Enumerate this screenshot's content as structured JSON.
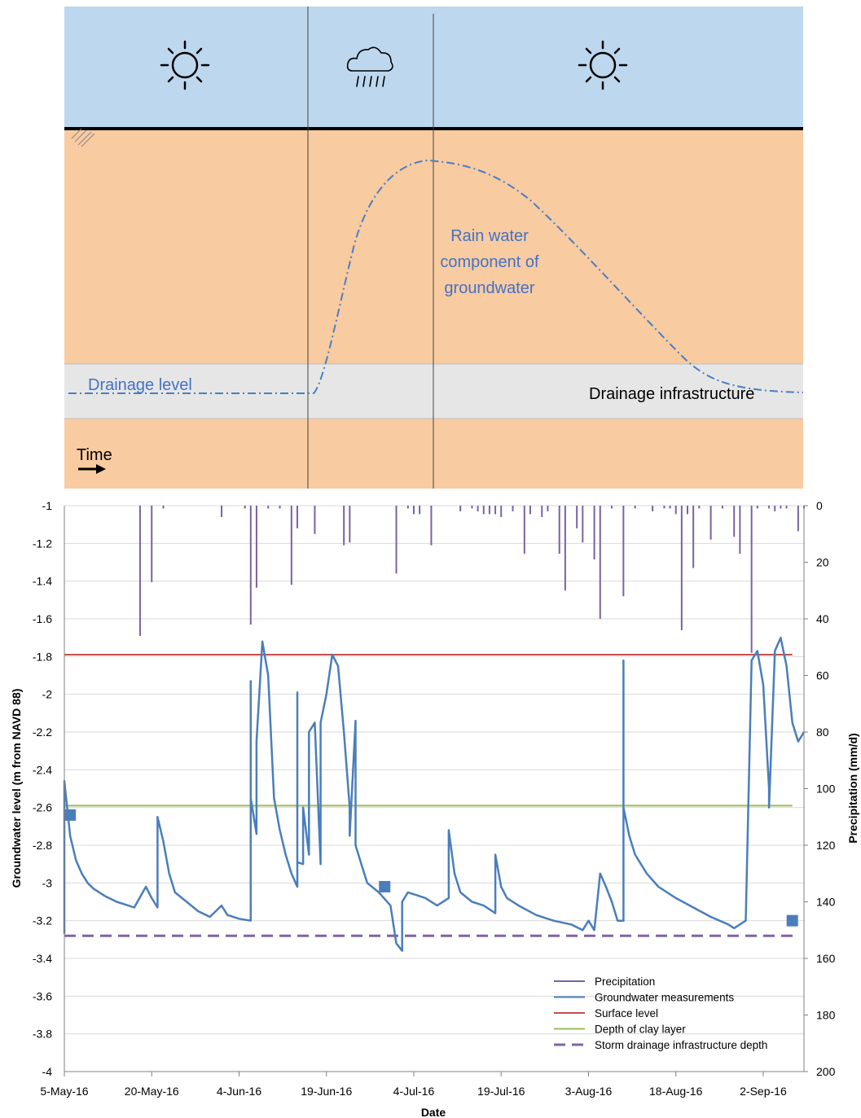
{
  "schematic": {
    "annotation_rain": [
      "Rain water",
      "component of",
      "groundwater"
    ],
    "drainage_level_label": "Drainage level",
    "drainage_infrastructure_label": "Drainage infrastructure",
    "time_label": "Time",
    "icons": [
      "sun-icon",
      "rain-cloud-icon",
      "sun-icon"
    ],
    "colors": {
      "sky": "#bdd7ee",
      "soil": "#f8cba1",
      "drain_band": "#e6e6e6",
      "dashline": "#4a7ec3"
    }
  },
  "chart_data": {
    "type": "line",
    "xlabel": "Date",
    "ylabel": "Groundwater level (m from NAVD 88)",
    "y2label": "Precipitation (mm/d)",
    "x_ticks": [
      "5-May-16",
      "20-May-16",
      "4-Jun-16",
      "19-Jun-16",
      "4-Jul-16",
      "19-Jul-16",
      "3-Aug-16",
      "18-Aug-16",
      "2-Sep-16"
    ],
    "xlim": [
      "2016-05-05",
      "2016-09-09"
    ],
    "ylim": [
      -4,
      -1
    ],
    "y_ticks": [
      -1,
      -1.2,
      -1.4,
      -1.6,
      -1.8,
      -2,
      -2.2,
      -2.4,
      -2.6,
      -2.8,
      -3,
      -3.2,
      -3.4,
      -3.6,
      -3.8,
      -4
    ],
    "y2lim": [
      0,
      200
    ],
    "y2_reversed": true,
    "y2_ticks": [
      0,
      20,
      40,
      60,
      80,
      100,
      120,
      140,
      160,
      180,
      200
    ],
    "grid": true,
    "legend_position": "bottom-right",
    "series": [
      {
        "name": "Precipitation",
        "type": "bar",
        "color": "#7a62a3",
        "points": [
          [
            "2016-05-18",
            46
          ],
          [
            "2016-05-20",
            27
          ],
          [
            "2016-05-22",
            1
          ],
          [
            "2016-06-01",
            4
          ],
          [
            "2016-06-05",
            1
          ],
          [
            "2016-06-06",
            42
          ],
          [
            "2016-06-07",
            29
          ],
          [
            "2016-06-09",
            1
          ],
          [
            "2016-06-11",
            1
          ],
          [
            "2016-06-13",
            28
          ],
          [
            "2016-06-14",
            8
          ],
          [
            "2016-06-17",
            10
          ],
          [
            "2016-06-22",
            14
          ],
          [
            "2016-06-23",
            13
          ],
          [
            "2016-07-01",
            24
          ],
          [
            "2016-07-03",
            1
          ],
          [
            "2016-07-04",
            3
          ],
          [
            "2016-07-05",
            3
          ],
          [
            "2016-07-07",
            14
          ],
          [
            "2016-07-12",
            2
          ],
          [
            "2016-07-14",
            1
          ],
          [
            "2016-07-15",
            2
          ],
          [
            "2016-07-16",
            3
          ],
          [
            "2016-07-17",
            3
          ],
          [
            "2016-07-18",
            3
          ],
          [
            "2016-07-19",
            4
          ],
          [
            "2016-07-21",
            2
          ],
          [
            "2016-07-23",
            17
          ],
          [
            "2016-07-24",
            3
          ],
          [
            "2016-07-26",
            4
          ],
          [
            "2016-07-27",
            2
          ],
          [
            "2016-07-29",
            17
          ],
          [
            "2016-07-30",
            30
          ],
          [
            "2016-08-01",
            8
          ],
          [
            "2016-08-02",
            13
          ],
          [
            "2016-08-04",
            19
          ],
          [
            "2016-08-05",
            40
          ],
          [
            "2016-08-07",
            1
          ],
          [
            "2016-08-09",
            32
          ],
          [
            "2016-08-11",
            1
          ],
          [
            "2016-08-14",
            2
          ],
          [
            "2016-08-16",
            1
          ],
          [
            "2016-08-17",
            1
          ],
          [
            "2016-08-18",
            3
          ],
          [
            "2016-08-19",
            44
          ],
          [
            "2016-08-20",
            3
          ],
          [
            "2016-08-21",
            22
          ],
          [
            "2016-08-22",
            1
          ],
          [
            "2016-08-24",
            12
          ],
          [
            "2016-08-26",
            1
          ],
          [
            "2016-08-28",
            11
          ],
          [
            "2016-08-29",
            17
          ],
          [
            "2016-08-31",
            52
          ],
          [
            "2016-09-01",
            1
          ],
          [
            "2016-09-03",
            1
          ],
          [
            "2016-09-04",
            2
          ],
          [
            "2016-09-05",
            1
          ],
          [
            "2016-09-06",
            1
          ],
          [
            "2016-09-08",
            9
          ],
          [
            "2016-09-09",
            1
          ]
        ]
      },
      {
        "name": "Groundwater measurements",
        "type": "line",
        "color": "#4a7ebb",
        "points": [
          [
            "2016-05-05",
            -3.27
          ],
          [
            "2016-05-05",
            -2.46
          ],
          [
            "2016-05-06",
            -2.75
          ],
          [
            "2016-05-07",
            -2.88
          ],
          [
            "2016-05-08",
            -2.95
          ],
          [
            "2016-05-09",
            -3.0
          ],
          [
            "2016-05-10",
            -3.03
          ],
          [
            "2016-05-12",
            -3.07
          ],
          [
            "2016-05-14",
            -3.1
          ],
          [
            "2016-05-16",
            -3.12
          ],
          [
            "2016-05-17",
            -3.13
          ],
          [
            "2016-05-19",
            -3.02
          ],
          [
            "2016-05-20",
            -3.08
          ],
          [
            "2016-05-21",
            -3.13
          ],
          [
            "2016-05-21",
            -2.65
          ],
          [
            "2016-05-22",
            -2.78
          ],
          [
            "2016-05-23",
            -2.95
          ],
          [
            "2016-05-24",
            -3.05
          ],
          [
            "2016-05-26",
            -3.1
          ],
          [
            "2016-05-28",
            -3.15
          ],
          [
            "2016-05-30",
            -3.18
          ],
          [
            "2016-06-01",
            -3.12
          ],
          [
            "2016-06-02",
            -3.17
          ],
          [
            "2016-06-04",
            -3.19
          ],
          [
            "2016-06-06",
            -3.2
          ],
          [
            "2016-06-06",
            -1.93
          ],
          [
            "2016-06-06",
            -2.55
          ],
          [
            "2016-06-07",
            -2.74
          ],
          [
            "2016-06-07",
            -2.25
          ],
          [
            "2016-06-08",
            -1.72
          ],
          [
            "2016-06-09",
            -1.9
          ],
          [
            "2016-06-10",
            -2.55
          ],
          [
            "2016-06-11",
            -2.72
          ],
          [
            "2016-06-12",
            -2.85
          ],
          [
            "2016-06-13",
            -2.95
          ],
          [
            "2016-06-14",
            -3.02
          ],
          [
            "2016-06-14",
            -1.99
          ],
          [
            "2016-06-14",
            -2.89
          ],
          [
            "2016-06-15",
            -2.9
          ],
          [
            "2016-06-15",
            -2.6
          ],
          [
            "2016-06-16",
            -2.85
          ],
          [
            "2016-06-16",
            -2.2
          ],
          [
            "2016-06-17",
            -2.15
          ],
          [
            "2016-06-18",
            -2.9
          ],
          [
            "2016-06-18",
            -2.15
          ],
          [
            "2016-06-19",
            -2.0
          ],
          [
            "2016-06-20",
            -1.79
          ],
          [
            "2016-06-21",
            -1.85
          ],
          [
            "2016-06-22",
            -2.2
          ],
          [
            "2016-06-23",
            -2.6
          ],
          [
            "2016-06-23",
            -2.75
          ],
          [
            "2016-06-24",
            -2.14
          ],
          [
            "2016-06-24",
            -2.8
          ],
          [
            "2016-06-25",
            -2.9
          ],
          [
            "2016-06-26",
            -3.0
          ],
          [
            "2016-06-28",
            -3.05
          ],
          [
            "2016-06-30",
            -3.12
          ],
          [
            "2016-07-01",
            -3.32
          ],
          [
            "2016-07-02",
            -3.36
          ],
          [
            "2016-07-02",
            -3.1
          ],
          [
            "2016-07-03",
            -3.05
          ],
          [
            "2016-07-06",
            -3.08
          ],
          [
            "2016-07-08",
            -3.12
          ],
          [
            "2016-07-10",
            -3.08
          ],
          [
            "2016-07-10",
            -2.72
          ],
          [
            "2016-07-11",
            -2.95
          ],
          [
            "2016-07-12",
            -3.05
          ],
          [
            "2016-07-14",
            -3.1
          ],
          [
            "2016-07-16",
            -3.12
          ],
          [
            "2016-07-18",
            -3.16
          ],
          [
            "2016-07-18",
            -2.85
          ],
          [
            "2016-07-19",
            -3.02
          ],
          [
            "2016-07-20",
            -3.08
          ],
          [
            "2016-07-22",
            -3.12
          ],
          [
            "2016-07-25",
            -3.17
          ],
          [
            "2016-07-28",
            -3.2
          ],
          [
            "2016-07-31",
            -3.22
          ],
          [
            "2016-08-02",
            -3.25
          ],
          [
            "2016-08-03",
            -3.2
          ],
          [
            "2016-08-04",
            -3.25
          ],
          [
            "2016-08-05",
            -2.95
          ],
          [
            "2016-08-06",
            -3.02
          ],
          [
            "2016-08-07",
            -3.1
          ],
          [
            "2016-08-08",
            -3.2
          ],
          [
            "2016-08-09",
            -3.2
          ],
          [
            "2016-08-09",
            -1.82
          ],
          [
            "2016-08-09",
            -2.6
          ],
          [
            "2016-08-10",
            -2.75
          ],
          [
            "2016-08-11",
            -2.85
          ],
          [
            "2016-08-13",
            -2.95
          ],
          [
            "2016-08-15",
            -3.02
          ],
          [
            "2016-08-18",
            -3.08
          ],
          [
            "2016-08-21",
            -3.13
          ],
          [
            "2016-08-24",
            -3.18
          ],
          [
            "2016-08-27",
            -3.22
          ],
          [
            "2016-08-28",
            -3.24
          ],
          [
            "2016-08-30",
            -3.2
          ],
          [
            "2016-08-31",
            -1.82
          ],
          [
            "2016-09-01",
            -1.77
          ],
          [
            "2016-09-02",
            -1.95
          ],
          [
            "2016-09-03",
            -2.5
          ],
          [
            "2016-09-03",
            -2.6
          ],
          [
            "2016-09-04",
            -1.77
          ],
          [
            "2016-09-05",
            -1.7
          ],
          [
            "2016-09-06",
            -1.85
          ],
          [
            "2016-09-07",
            -2.15
          ],
          [
            "2016-09-08",
            -2.25
          ],
          [
            "2016-09-09",
            -2.2
          ]
        ]
      },
      {
        "name": "Surface level",
        "type": "hline",
        "color": "#c0504d",
        "y": -1.79,
        "x": [
          "2016-05-05",
          "2016-09-07"
        ]
      },
      {
        "name": "Depth of clay layer",
        "type": "hline",
        "color": "#9bbb59",
        "y": -2.59,
        "x": [
          "2016-05-05",
          "2016-09-07"
        ]
      },
      {
        "name": "Storm drainage infrastructure depth",
        "type": "hline",
        "style": "dashed",
        "color": "#8064a2",
        "y": -3.28,
        "x": [
          "2016-05-05",
          "2016-09-08"
        ]
      }
    ],
    "markers": [
      [
        "2016-05-06",
        -2.64
      ],
      [
        "2016-06-29",
        -3.02
      ],
      [
        "2016-09-07",
        -3.2
      ]
    ]
  }
}
